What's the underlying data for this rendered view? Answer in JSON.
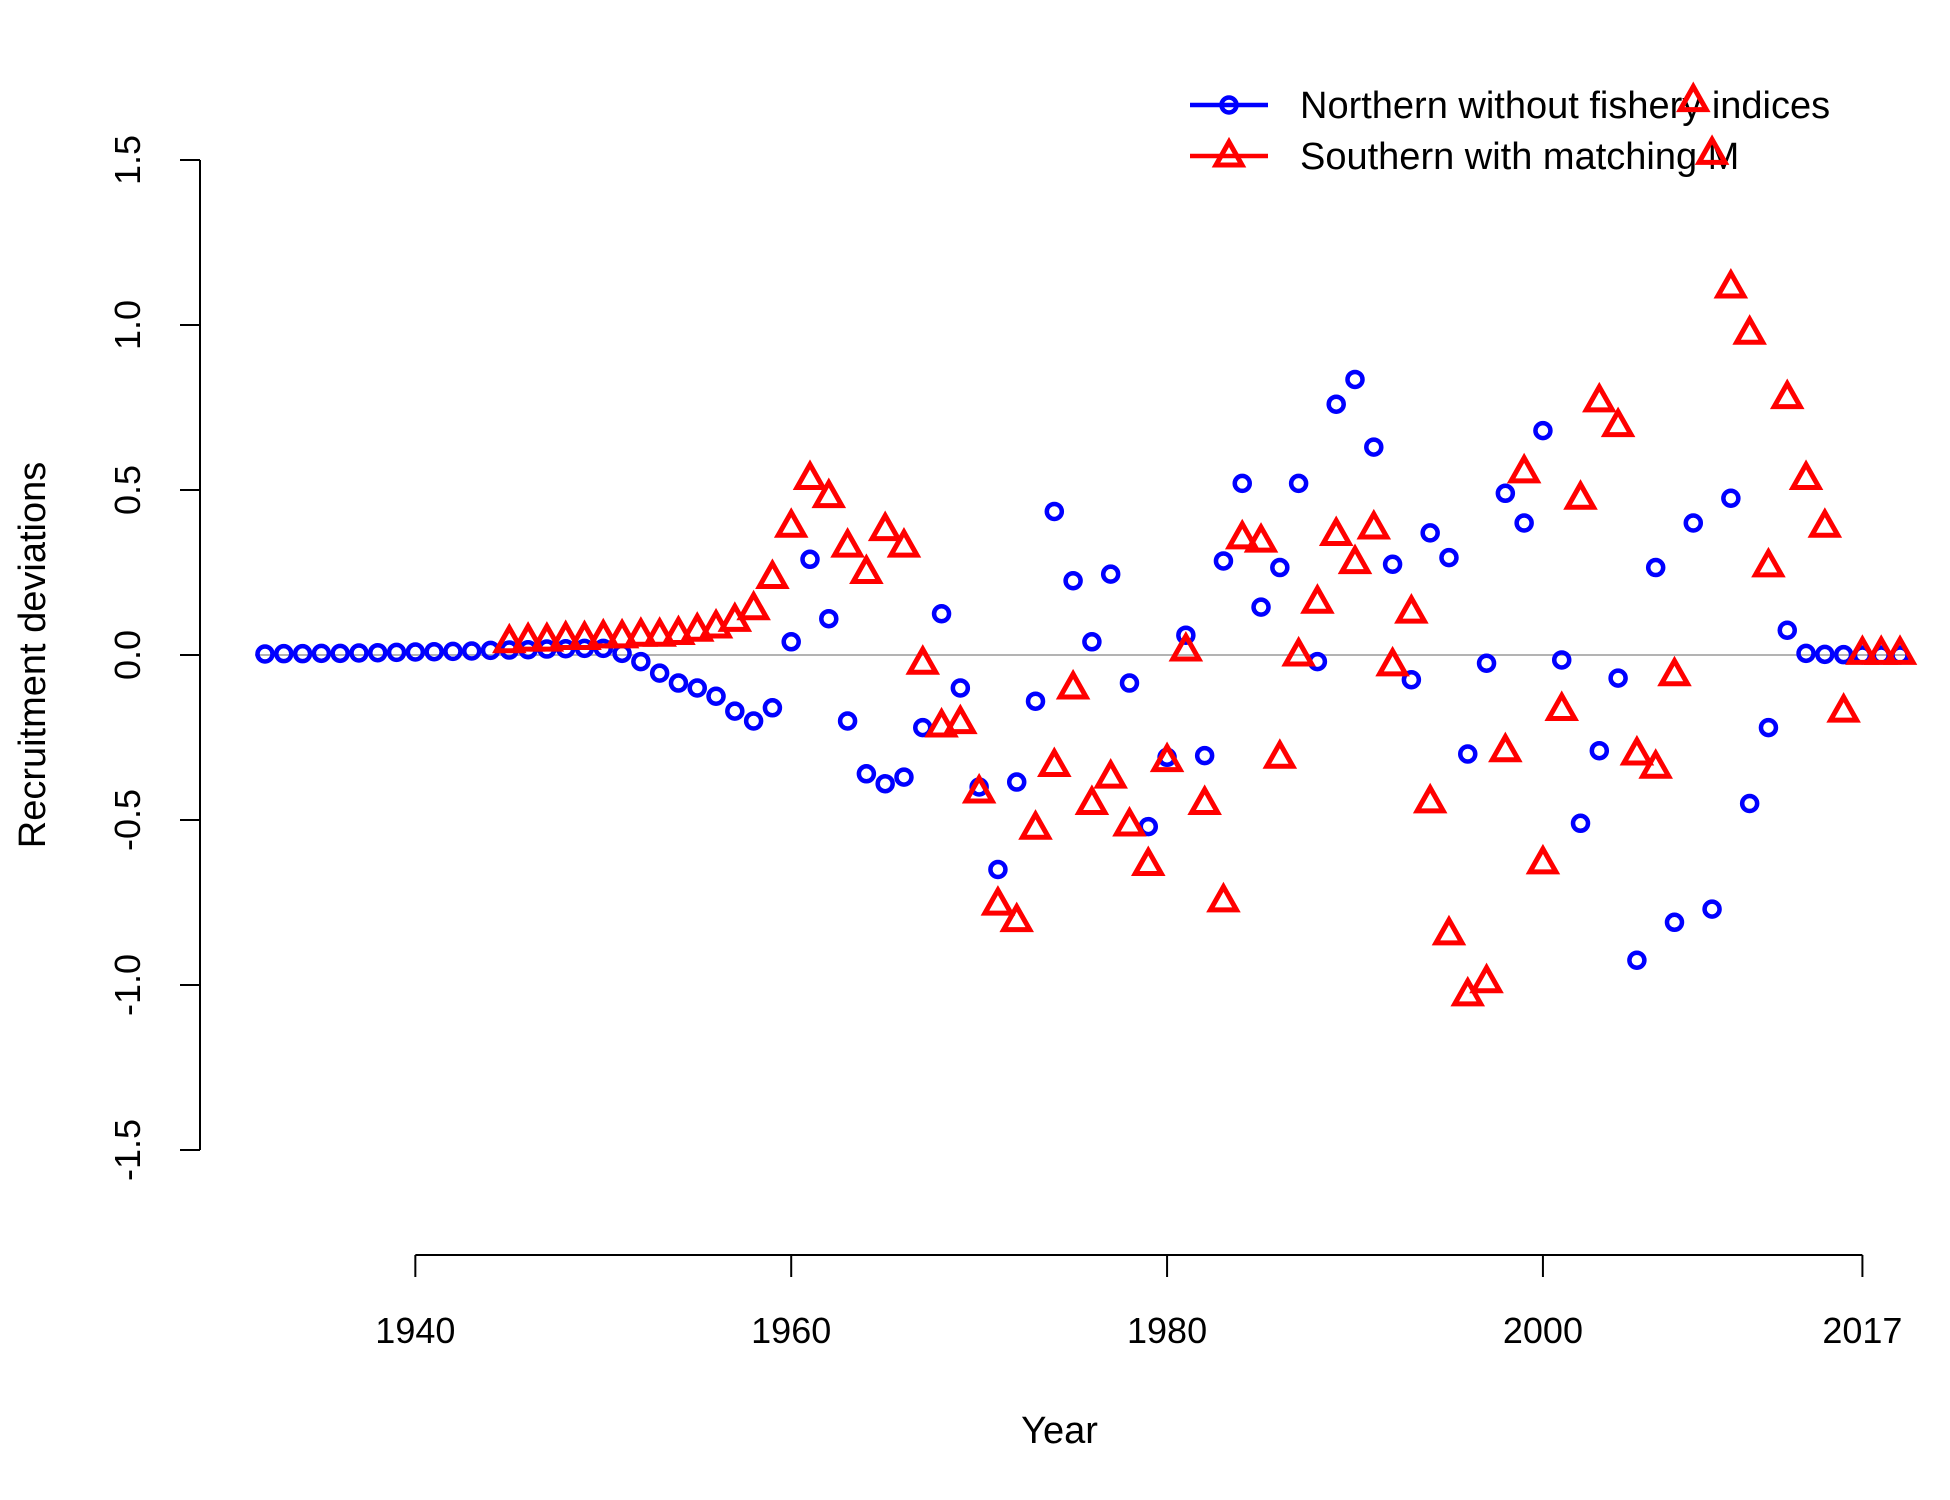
{
  "chart_data": {
    "type": "scatter",
    "title": "",
    "xlabel": "Year",
    "ylabel": "Recruitment deviations",
    "xlim": [
      1932,
      2019
    ],
    "ylim": [
      -1.5,
      1.5
    ],
    "x_ticks": [
      1940,
      1960,
      1980,
      2000,
      2017
    ],
    "x_tick_labels": [
      "1940",
      "1960",
      "1980",
      "2000",
      "2017"
    ],
    "y_ticks": [
      -1.5,
      -1.0,
      -0.5,
      0.0,
      0.5,
      1.0,
      1.5
    ],
    "y_tick_labels": [
      "-1.5",
      "-1.0",
      "-0.5",
      "0.0",
      "0.5",
      "1.0",
      "1.5"
    ],
    "reference_line": 0,
    "grid": false,
    "legend_position": "top-right",
    "colors": {
      "reference_line": "#b3b3b3",
      "axis": "#000000"
    },
    "series": [
      {
        "name": "Northern without fishery indices",
        "color": "#0000ff",
        "marker": "circle",
        "x": [
          1932,
          1933,
          1934,
          1935,
          1936,
          1937,
          1938,
          1939,
          1940,
          1941,
          1942,
          1943,
          1944,
          1945,
          1946,
          1947,
          1948,
          1949,
          1950,
          1951,
          1952,
          1953,
          1954,
          1955,
          1956,
          1957,
          1958,
          1959,
          1960,
          1961,
          1962,
          1963,
          1964,
          1965,
          1966,
          1967,
          1968,
          1969,
          1970,
          1971,
          1972,
          1973,
          1974,
          1975,
          1976,
          1977,
          1978,
          1979,
          1980,
          1981,
          1982,
          1983,
          1984,
          1985,
          1986,
          1987,
          1988,
          1989,
          1990,
          1991,
          1992,
          1993,
          1994,
          1995,
          1996,
          1997,
          1998,
          1999,
          2000,
          2001,
          2002,
          2003,
          2004,
          2005,
          2006,
          2007,
          2008,
          2009,
          2010,
          2011,
          2012,
          2013,
          2014,
          2015,
          2016,
          2017,
          2018,
          2019
        ],
        "y": [
          0.003,
          0.004,
          0.004,
          0.005,
          0.005,
          0.006,
          0.007,
          0.008,
          0.009,
          0.01,
          0.011,
          0.012,
          0.014,
          0.015,
          0.016,
          0.018,
          0.019,
          0.02,
          0.02,
          0.005,
          -0.02,
          -0.055,
          -0.085,
          -0.1,
          -0.125,
          -0.17,
          -0.2,
          -0.16,
          0.04,
          0.29,
          0.11,
          -0.2,
          -0.36,
          -0.39,
          -0.37,
          -0.22,
          0.125,
          -0.1,
          -0.4,
          -0.65,
          -0.385,
          -0.14,
          0.435,
          0.225,
          0.04,
          0.245,
          -0.085,
          -0.52,
          -0.31,
          0.06,
          -0.305,
          0.285,
          0.52,
          0.145,
          0.265,
          0.52,
          -0.02,
          0.76,
          0.835,
          0.63,
          0.275,
          -0.075,
          0.37,
          0.295,
          -0.3,
          -0.025,
          0.49,
          0.4,
          0.68,
          -0.015,
          -0.51,
          -0.29,
          -0.07,
          -0.925,
          0.265,
          -0.81,
          0.4,
          -0.77,
          0.475,
          -0.45,
          -0.22,
          0.075,
          0.005,
          0.002,
          0.001,
          0.0,
          0.0,
          0.0
        ]
      },
      {
        "name": "Southern with matching M",
        "color": "#ff0000",
        "marker": "triangle",
        "x": [
          1945,
          1946,
          1947,
          1948,
          1949,
          1950,
          1951,
          1952,
          1953,
          1954,
          1955,
          1956,
          1957,
          1958,
          1959,
          1960,
          1961,
          1962,
          1963,
          1964,
          1965,
          1966,
          1967,
          1968,
          1969,
          1970,
          1971,
          1972,
          1973,
          1974,
          1975,
          1976,
          1977,
          1978,
          1979,
          1980,
          1981,
          1982,
          1983,
          1984,
          1985,
          1986,
          1987,
          1988,
          1989,
          1990,
          1991,
          1992,
          1993,
          1994,
          1995,
          1996,
          1997,
          1998,
          1999,
          2000,
          2001,
          2002,
          2003,
          2004,
          2005,
          2006,
          2007,
          2008,
          2009,
          2010,
          2011,
          2012,
          2013,
          2014,
          2015,
          2016,
          2017,
          2018,
          2019
        ],
        "y": [
          0.04,
          0.045,
          0.045,
          0.05,
          0.05,
          0.055,
          0.055,
          0.06,
          0.06,
          0.065,
          0.075,
          0.085,
          0.105,
          0.14,
          0.235,
          0.39,
          0.535,
          0.48,
          0.33,
          0.25,
          0.38,
          0.33,
          -0.025,
          -0.215,
          -0.205,
          -0.415,
          -0.755,
          -0.805,
          -0.525,
          -0.335,
          -0.1,
          -0.45,
          -0.37,
          -0.515,
          -0.635,
          -0.32,
          0.015,
          -0.45,
          -0.745,
          0.355,
          0.345,
          -0.31,
          0.0,
          0.16,
          0.365,
          0.28,
          0.385,
          -0.03,
          0.13,
          -0.445,
          -0.845,
          -1.03,
          -0.99,
          -0.29,
          0.555,
          -0.63,
          -0.165,
          0.475,
          0.77,
          0.695,
          -0.3,
          -0.34,
          -0.06,
          1.68,
          1.52,
          1.115,
          0.975,
          0.27,
          0.78,
          0.535,
          0.39,
          -0.17,
          0.005,
          0.005,
          0.005
        ]
      }
    ]
  }
}
